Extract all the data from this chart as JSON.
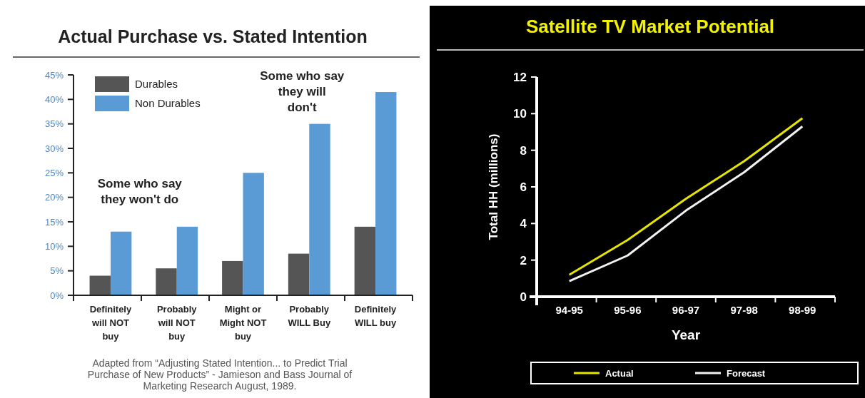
{
  "chart_data": [
    {
      "type": "bar",
      "title": "Actual Purchase vs. Stated Intention",
      "categories": [
        "Definitely will NOT buy",
        "Probably will NOT buy",
        "Might or Might NOT buy",
        "Probably WILL Buy",
        "Definitely WILL buy"
      ],
      "series": [
        {
          "name": "Durables",
          "color": "#555555",
          "values": [
            4,
            5.5,
            7,
            8.5,
            14
          ]
        },
        {
          "name": "Non Durables",
          "color": "#5b9bd5",
          "values": [
            13,
            14,
            25,
            35,
            41.5
          ]
        }
      ],
      "ylim": [
        0,
        45
      ],
      "yticks": [
        {
          "value": 0,
          "label": "0%"
        },
        {
          "value": 5,
          "label": "5%"
        },
        {
          "value": 10,
          "label": "10%"
        },
        {
          "value": 15,
          "label": "15%"
        },
        {
          "value": 20,
          "label": "20%"
        },
        {
          "value": 25,
          "label": "25%"
        },
        {
          "value": 30,
          "label": "30%"
        },
        {
          "value": 35,
          "label": "35%"
        },
        {
          "value": 40,
          "label": "40%"
        },
        {
          "value": 45,
          "label": "45%"
        }
      ],
      "legend": "top left",
      "grid": false,
      "annotations": [
        "Some who say they won't do",
        "Some who say they will don't",
        "Adapted from “Adjusting Stated Intention... to Predict Trial Purchase of New Products” - Jamieson and Bass Journal of Marketing Research August, 1989."
      ]
    },
    {
      "type": "line",
      "title": "Satellite TV Market Potential",
      "xlabel": "Year",
      "ylabel": "Total HH (millions)",
      "categories": [
        "94-95",
        "95-96",
        "96-97",
        "97-98",
        "98-99"
      ],
      "series": [
        {
          "name": "Actual",
          "color": "#e5e500",
          "values": [
            1.2,
            3.1,
            5.35,
            7.4,
            9.75
          ]
        },
        {
          "name": "Forecast",
          "color": "#f2f2f2",
          "values": [
            0.85,
            2.25,
            4.7,
            6.8,
            9.3
          ]
        }
      ],
      "ylim": [
        0,
        12
      ],
      "yticks": [
        0,
        2,
        4,
        6,
        8,
        10,
        12
      ],
      "legend": "bottom",
      "grid": false,
      "line_style": "solid",
      "marker": "none"
    }
  ]
}
